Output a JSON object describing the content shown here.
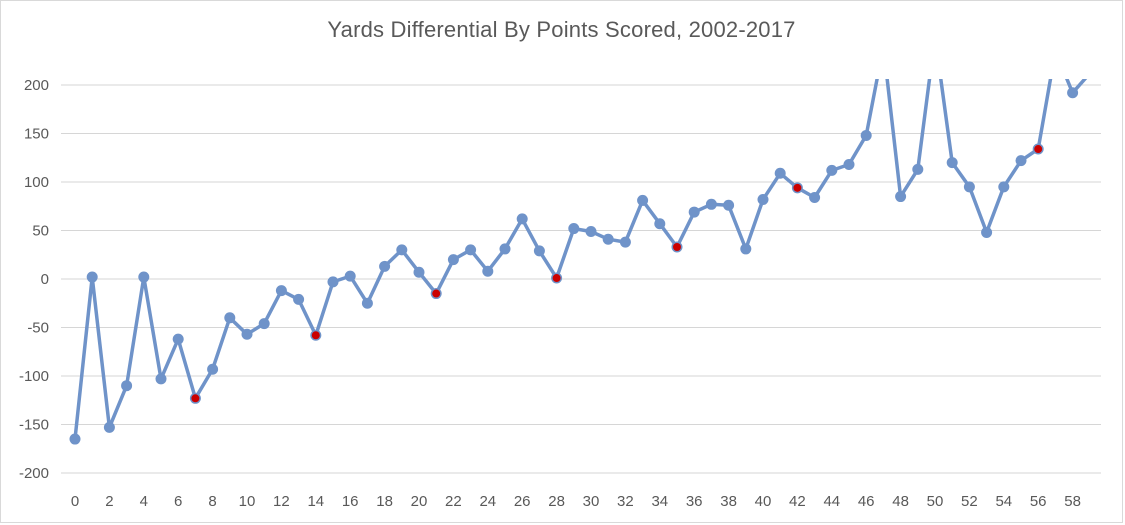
{
  "chart_data": {
    "type": "line",
    "title": "Yards Differential By Points Scored, 2002-2017",
    "xlabel": "",
    "ylabel": "",
    "ylim": [
      -200,
      200
    ],
    "y_ticks": [
      200,
      150,
      100,
      50,
      0,
      -50,
      -100,
      -150,
      -200
    ],
    "x_tick_labels": [
      "0",
      "2",
      "4",
      "6",
      "8",
      "10",
      "12",
      "14",
      "16",
      "18",
      "20",
      "22",
      "24",
      "26",
      "28",
      "30",
      "32",
      "34",
      "36",
      "38",
      "40",
      "42",
      "44",
      "46",
      "48",
      "50",
      "52",
      "54",
      "56",
      "58"
    ],
    "grid": "horizontal",
    "legend": "none",
    "x": [
      0,
      1,
      2,
      3,
      4,
      5,
      6,
      7,
      8,
      9,
      10,
      11,
      12,
      13,
      14,
      15,
      16,
      17,
      18,
      19,
      20,
      21,
      22,
      23,
      24,
      25,
      26,
      27,
      28,
      29,
      30,
      31,
      32,
      33,
      34,
      35,
      36,
      37,
      38,
      39,
      40,
      41,
      42,
      43,
      44,
      45,
      46,
      47,
      48,
      49,
      50,
      51,
      52,
      53,
      54,
      55,
      56,
      57,
      58,
      59
    ],
    "values": [
      -165,
      2,
      -153,
      -110,
      2,
      -103,
      -62,
      -123,
      -93,
      -40,
      -57,
      -46,
      -12,
      -21,
      -58,
      -3,
      3,
      -25,
      13,
      30,
      7,
      -15,
      20,
      30,
      8,
      31,
      62,
      29,
      1,
      52,
      49,
      41,
      38,
      81,
      57,
      33,
      69,
      77,
      76,
      31,
      82,
      109,
      94,
      84,
      112,
      118,
      148,
      240,
      85,
      113,
      250,
      120,
      95,
      48,
      95,
      122,
      134,
      235,
      192,
      212
    ],
    "red_marker_x": [
      7,
      14,
      21,
      28,
      35,
      42,
      56
    ],
    "clipped_above_ymax_x": [
      47,
      50,
      57,
      59
    ],
    "colors": {
      "line": "#6f93c9",
      "marker": "#6f93c9",
      "highlight_marker": "#cb0000",
      "gridline": "#d6d6d6",
      "tick_label": "#595959",
      "title": "#595959",
      "frame_border": "#d9d9d9"
    }
  }
}
